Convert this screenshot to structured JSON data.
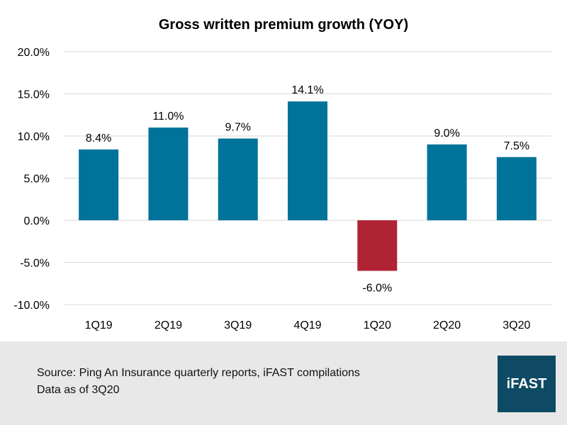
{
  "chart_data": {
    "type": "bar",
    "title": "Gross written premium growth (YOY)",
    "categories": [
      "1Q19",
      "2Q19",
      "3Q19",
      "4Q19",
      "1Q20",
      "2Q20",
      "3Q20"
    ],
    "values": [
      8.4,
      11.0,
      9.7,
      14.1,
      -6.0,
      9.0,
      7.5
    ],
    "data_labels": [
      "8.4%",
      "11.0%",
      "9.7%",
      "14.1%",
      "-6.0%",
      "9.0%",
      "7.5%"
    ],
    "ylim": [
      -10,
      20
    ],
    "yticks": [
      20,
      15,
      10,
      5,
      0,
      -5,
      -10
    ],
    "ytick_labels": [
      "20.0%",
      "15.0%",
      "10.0%",
      "5.0%",
      "0.0%",
      "-5.0%",
      "-10.0%"
    ],
    "xlabel": "",
    "ylabel": "",
    "grid": true,
    "colors": {
      "positive": "#00739a",
      "negative": "#b02334"
    }
  },
  "footer": {
    "source": "Source: Ping An Insurance quarterly reports, iFAST compilations",
    "date_note": "Data as of 3Q20",
    "logo": "iFAST"
  }
}
